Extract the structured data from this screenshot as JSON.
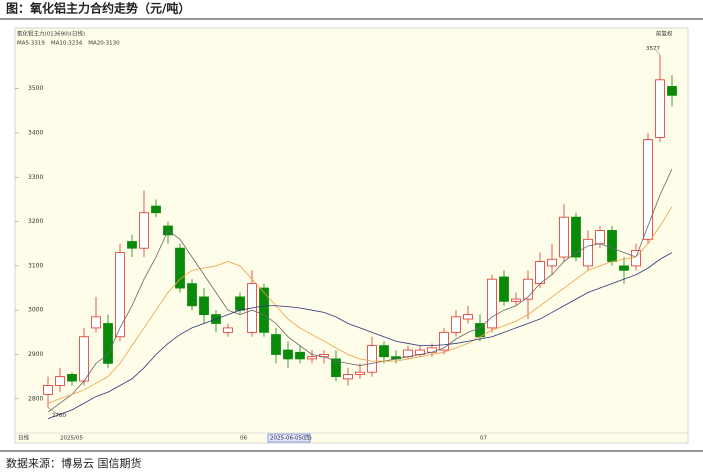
{
  "chart_data": {
    "type": "candlestick",
    "title": "图：氧化铝主力合约走势（元/吨）",
    "source": "数据来源：博易云 国信期货",
    "subtitle": "氧化铝主力(013690)(日线)",
    "corner_label": "前复权",
    "x_label": "日线",
    "categories": [
      null,
      "2025/05",
      null,
      null,
      null,
      null,
      null,
      null,
      null,
      null,
      null,
      null,
      null,
      null,
      null,
      null,
      "06",
      null,
      null,
      null,
      "2025-06-05(四)",
      null,
      null,
      null,
      null,
      null,
      null,
      null,
      null,
      null,
      null,
      null,
      null,
      null,
      null,
      null,
      "07",
      null,
      null,
      null,
      null,
      null,
      null,
      null,
      null,
      null,
      null,
      null,
      null,
      null,
      null,
      null,
      null
    ],
    "cursor_index": 20,
    "open": [
      2810,
      2830,
      2855,
      2840,
      2960,
      2970,
      2940,
      3155,
      3140,
      3235,
      3190,
      3140,
      3060,
      3030,
      2990,
      2950,
      3030,
      2950,
      3050,
      2945,
      2910,
      2905,
      2890,
      2895,
      2890,
      2845,
      2855,
      2860,
      2920,
      2895,
      2895,
      2900,
      2905,
      2910,
      2950,
      2980,
      2970,
      2960,
      3075,
      3020,
      3025,
      3060,
      3100,
      3120,
      3210,
      3100,
      3150,
      3180,
      3100,
      3100,
      3160,
      3390,
      3505
    ],
    "high": [
      2850,
      2870,
      2860,
      2960,
      3030,
      2990,
      3150,
      3170,
      3270,
      3250,
      3200,
      3150,
      3070,
      3050,
      3000,
      2970,
      3040,
      3090,
      3060,
      2960,
      2930,
      2920,
      2910,
      2910,
      2910,
      2870,
      2880,
      2940,
      2930,
      2910,
      2920,
      2920,
      2925,
      2960,
      3000,
      3010,
      2990,
      3080,
      3090,
      3040,
      3090,
      3130,
      3150,
      3240,
      3220,
      3180,
      3190,
      3190,
      3120,
      3150,
      3400,
      3577,
      3530
    ],
    "low": [
      2780,
      2815,
      2830,
      2830,
      2950,
      2870,
      2930,
      3120,
      3120,
      3210,
      3150,
      3040,
      3000,
      2970,
      2950,
      2940,
      2990,
      2940,
      2940,
      2880,
      2870,
      2880,
      2880,
      2880,
      2840,
      2830,
      2845,
      2850,
      2880,
      2880,
      2890,
      2895,
      2895,
      2900,
      2940,
      2970,
      2930,
      2950,
      3010,
      3010,
      2980,
      3050,
      3080,
      3110,
      3110,
      3090,
      3140,
      3100,
      3060,
      3090,
      3150,
      3380,
      3460
    ],
    "close": [
      2830,
      2850,
      2840,
      2940,
      2985,
      2880,
      3130,
      3140,
      3220,
      3220,
      3170,
      3050,
      3010,
      2990,
      2970,
      2960,
      3000,
      3060,
      2950,
      2900,
      2890,
      2890,
      2895,
      2900,
      2850,
      2855,
      2860,
      2920,
      2895,
      2890,
      2910,
      2910,
      2915,
      2950,
      2985,
      2990,
      2940,
      3070,
      3020,
      3025,
      3070,
      3110,
      3115,
      3210,
      3120,
      3160,
      3180,
      3110,
      3090,
      3135,
      3385,
      3520,
      3485
    ],
    "up_color": "#e0302a",
    "down_color": "#0a8a0a",
    "series": [
      {
        "name": "MA5:3319",
        "color": "#666666",
        "values": [
          2770,
          2790,
          2810,
          2840,
          2880,
          2900,
          2960,
          3010,
          3070,
          3120,
          3180,
          3160,
          3120,
          3080,
          3040,
          3000,
          2990,
          3000,
          2990,
          2970,
          2940,
          2920,
          2900,
          2895,
          2885,
          2880,
          2875,
          2880,
          2885,
          2890,
          2895,
          2900,
          2905,
          2915,
          2935,
          2950,
          2960,
          2985,
          3000,
          3010,
          3030,
          3060,
          3080,
          3110,
          3130,
          3145,
          3150,
          3140,
          3130,
          3120,
          3190,
          3260,
          3319
        ]
      },
      {
        "name": "MA10:3234",
        "color": "#f0a040",
        "values": [
          2790,
          2800,
          2810,
          2820,
          2835,
          2850,
          2880,
          2920,
          2960,
          3000,
          3040,
          3070,
          3090,
          3095,
          3100,
          3110,
          3100,
          3070,
          3040,
          3010,
          2980,
          2960,
          2945,
          2930,
          2915,
          2900,
          2890,
          2885,
          2885,
          2885,
          2890,
          2895,
          2900,
          2905,
          2915,
          2925,
          2940,
          2955,
          2965,
          2975,
          2990,
          3010,
          3030,
          3050,
          3070,
          3090,
          3100,
          3110,
          3115,
          3120,
          3150,
          3190,
          3234
        ]
      },
      {
        "name": "MA20:3130",
        "color": "#33337a",
        "values": [
          2755,
          2765,
          2775,
          2790,
          2805,
          2815,
          2830,
          2845,
          2870,
          2900,
          2925,
          2945,
          2960,
          2970,
          2980,
          2990,
          3000,
          3005,
          3010,
          3010,
          3008,
          3005,
          3000,
          2995,
          2985,
          2970,
          2960,
          2950,
          2940,
          2930,
          2925,
          2920,
          2920,
          2922,
          2925,
          2930,
          2935,
          2940,
          2950,
          2960,
          2970,
          2980,
          2995,
          3010,
          3025,
          3040,
          3050,
          3060,
          3070,
          3080,
          3095,
          3115,
          3130
        ]
      }
    ],
    "ylim": [
      2707,
      3637
    ],
    "yticks": [
      2800,
      2900,
      3000,
      3100,
      3200,
      3300,
      3400,
      3500
    ],
    "annotations": [
      "chart_data.high.51",
      "chart_data.low.0"
    ]
  }
}
